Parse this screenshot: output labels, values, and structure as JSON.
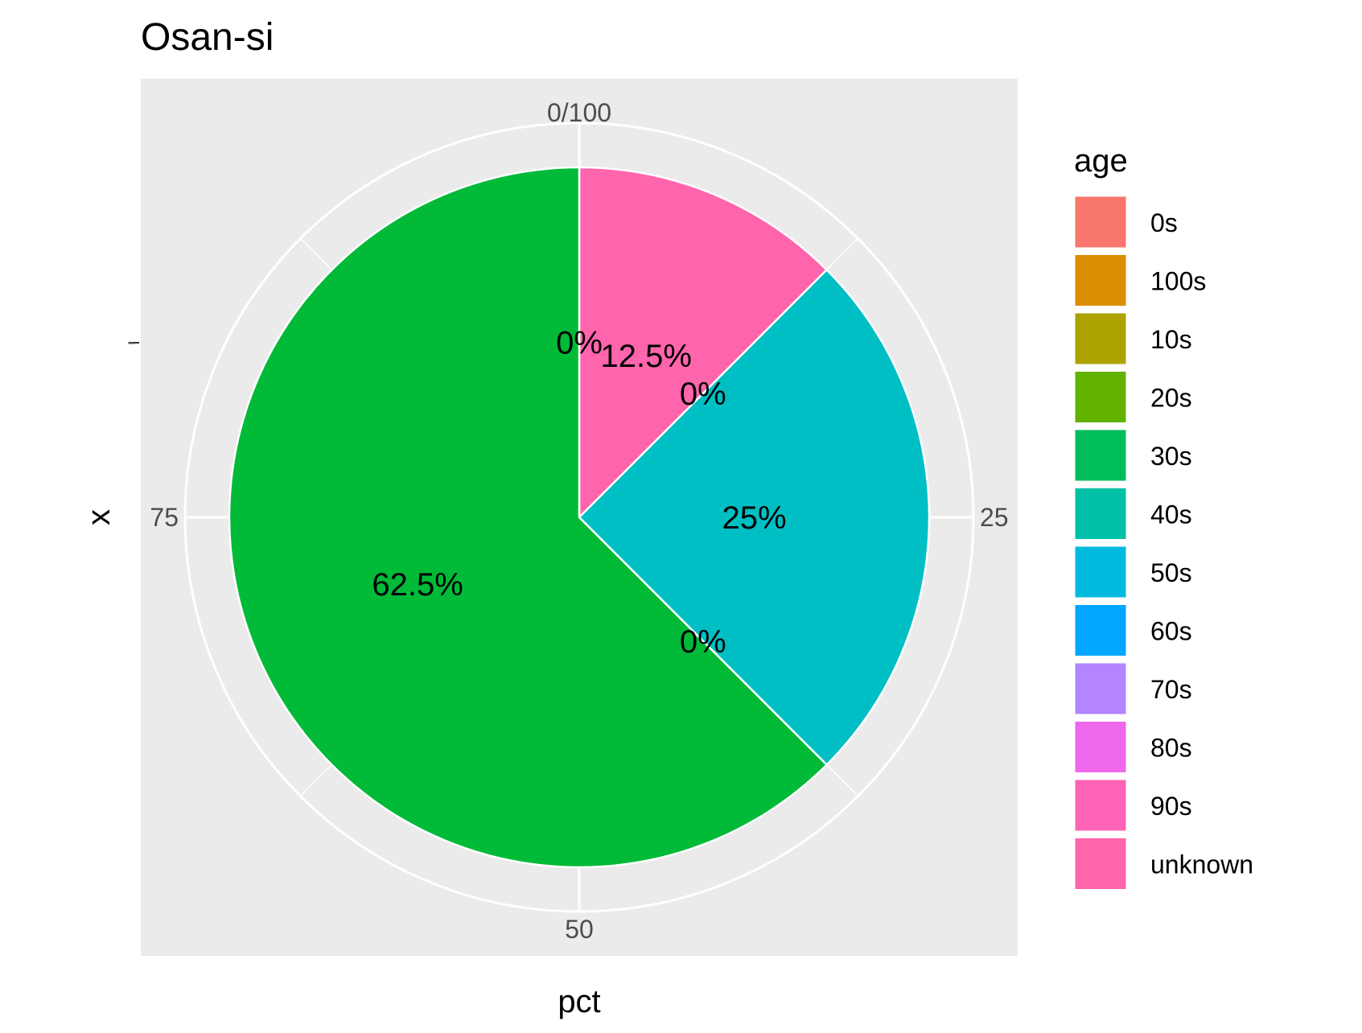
{
  "chart_data": {
    "type": "pie",
    "title": "Osan-si",
    "xlabel": "pct",
    "ylabel": "x",
    "theta_ticks": [
      "0/100",
      "25",
      "50",
      "75"
    ],
    "y_tick": "-",
    "legend": {
      "title": "age",
      "position": "right",
      "entries": [
        {
          "label": "0s",
          "color": "#F8766D"
        },
        {
          "label": "100s",
          "color": "#DB8E00"
        },
        {
          "label": "10s",
          "color": "#AEA200"
        },
        {
          "label": "20s",
          "color": "#64B200"
        },
        {
          "label": "30s",
          "color": "#00BD5C"
        },
        {
          "label": "40s",
          "color": "#00C1A7"
        },
        {
          "label": "50s",
          "color": "#00BADE"
        },
        {
          "label": "60s",
          "color": "#00A6FF"
        },
        {
          "label": "70s",
          "color": "#B385FF"
        },
        {
          "label": "80s",
          "color": "#EF67EB"
        },
        {
          "label": "90s",
          "color": "#FF63B6"
        },
        {
          "label": "unknown",
          "color": "#FF65AC"
        }
      ]
    },
    "slices": [
      {
        "label": "unknown",
        "value": 12.5,
        "text": "12.5%",
        "color": "#FF65AC"
      },
      {
        "label": "60s",
        "value": 0,
        "text": "0%",
        "color": "#00A6FF"
      },
      {
        "label": "50s",
        "value": 25,
        "text": "25%",
        "color": "#00BFC4"
      },
      {
        "label": "40s",
        "value": 0,
        "text": "0%",
        "color": "#00C1A7"
      },
      {
        "label": "30s",
        "value": 62.5,
        "text": "62.5%",
        "color": "#00BA38"
      },
      {
        "label": "0s",
        "value": 0,
        "text": "0%",
        "color": "#F8766D"
      }
    ],
    "grid": true
  }
}
